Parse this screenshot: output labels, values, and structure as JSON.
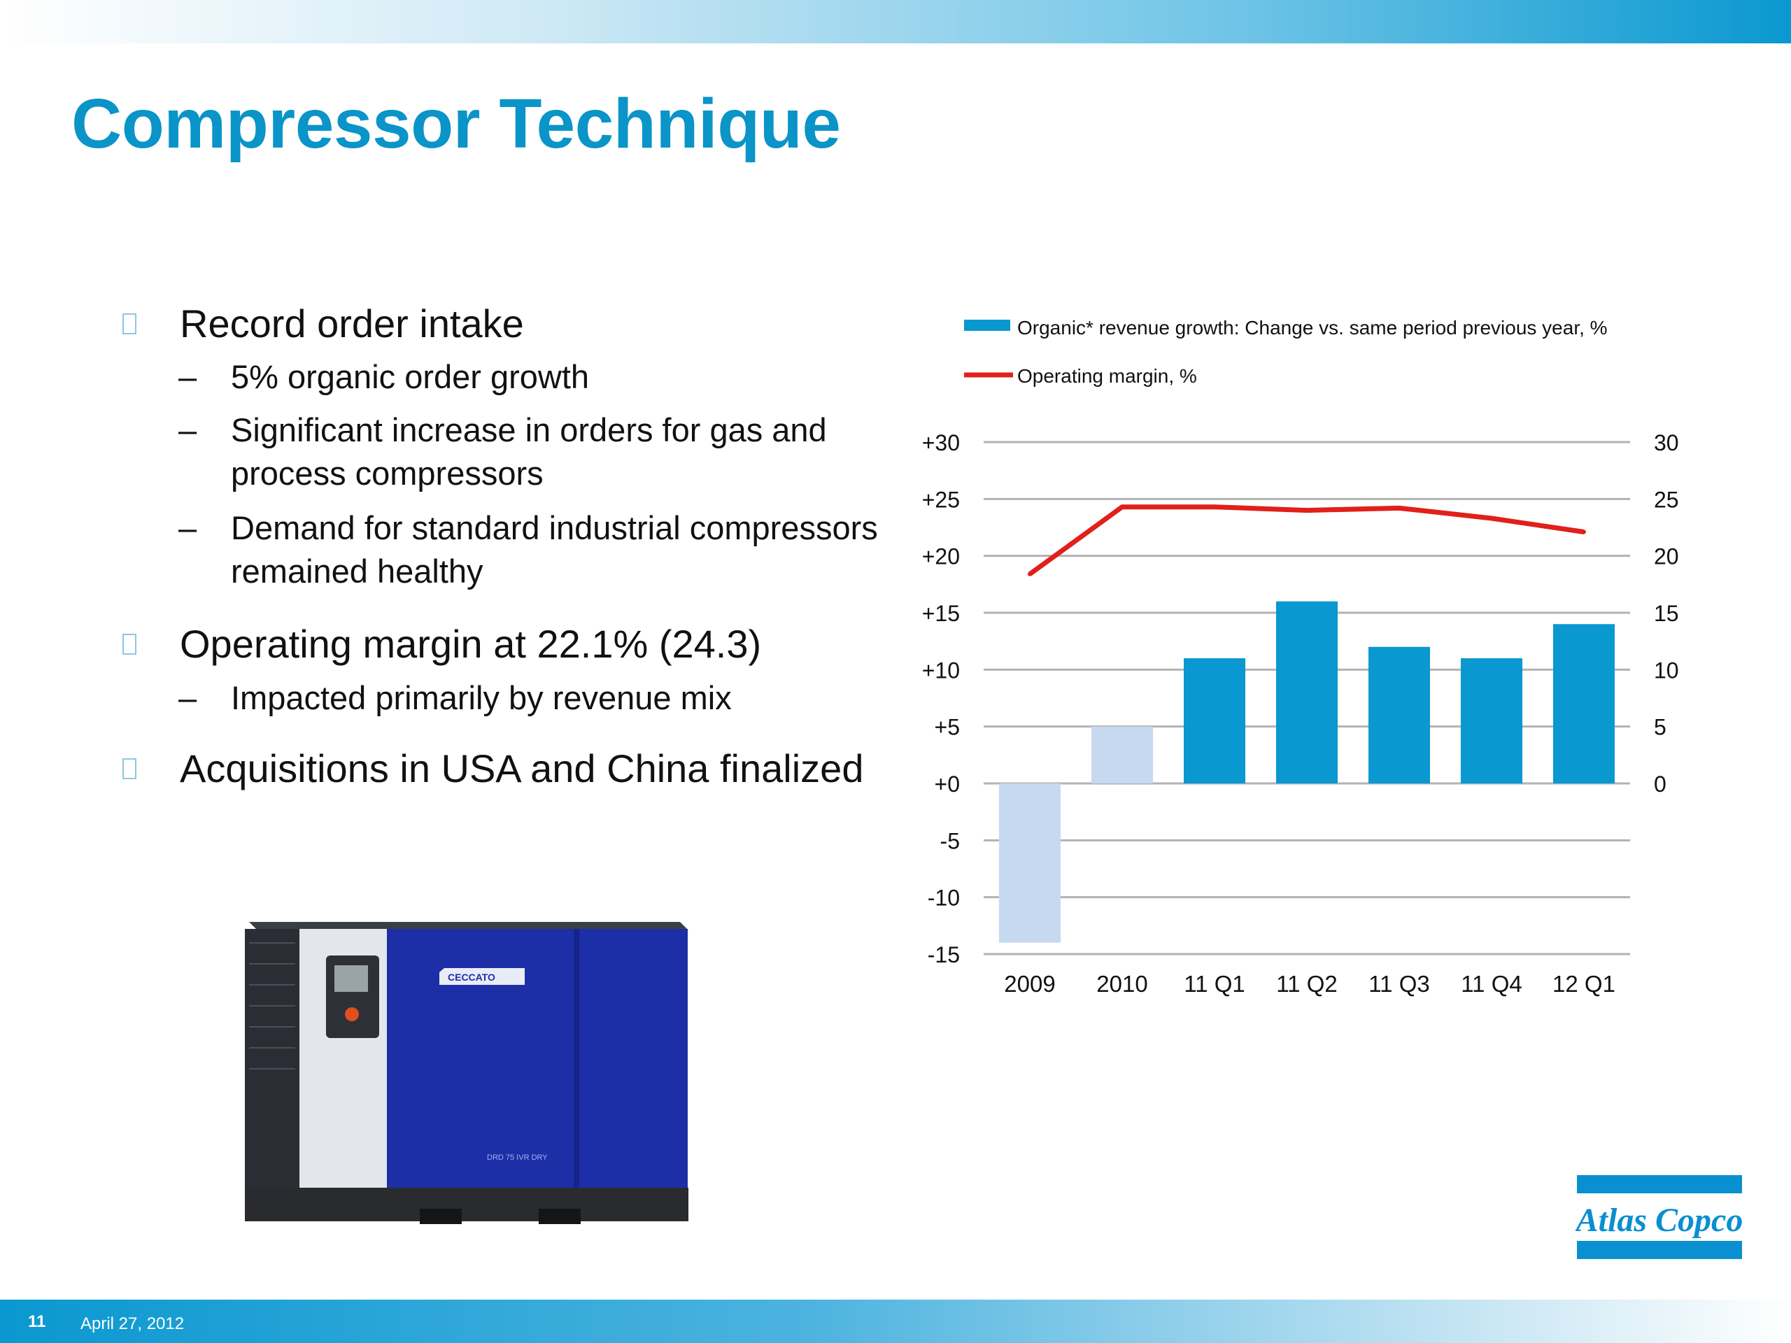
{
  "slide": {
    "title": "Compressor Technique",
    "page_number": "11",
    "date": "April 27, 2012"
  },
  "bullets": [
    {
      "text": "Record order intake",
      "subs": [
        "5% organic order growth",
        "Significant increase in orders for gas and process compressors",
        "Demand for standard industrial compressors remained healthy"
      ]
    },
    {
      "text": "Operating margin at 22.1% (24.3)",
      "subs": [
        "Impacted primarily by revenue mix"
      ]
    },
    {
      "text": "Acquisitions in USA and China finalized",
      "subs": []
    }
  ],
  "sub_dash": "–",
  "chart_data": {
    "type": "bar",
    "categories": [
      "2009",
      "2010",
      "11 Q1",
      "11 Q2",
      "11 Q3",
      "11 Q4",
      "12 Q1"
    ],
    "series": [
      {
        "name": "Organic* revenue growth: Change vs. same period previous year, %",
        "type": "bar",
        "axis": "left",
        "values": [
          -14,
          5,
          11,
          16,
          12,
          11,
          14
        ],
        "colors": [
          "#c6d9f0",
          "#c6d9f0",
          "#0a98d0",
          "#0a98d0",
          "#0a98d0",
          "#0a98d0",
          "#0a98d0"
        ]
      },
      {
        "name": "Operating margin, %",
        "type": "line",
        "axis": "right",
        "values": [
          18.4,
          24.3,
          24.3,
          24.0,
          24.2,
          23.3,
          22.1
        ],
        "color": "#e0201b"
      }
    ],
    "ylim_left": [
      -15,
      30
    ],
    "ylim_right": [
      0,
      30
    ],
    "left_ticks": [
      "-15",
      "-10",
      "-5",
      "+0",
      "+5",
      "+10",
      "+15",
      "+20",
      "+25",
      "+30"
    ],
    "right_ticks": [
      "0",
      "5",
      "10",
      "15",
      "20",
      "25",
      "30"
    ],
    "grid": true,
    "legend_position": "top"
  },
  "compressor": {
    "brand_label": "CECCATO",
    "model_label": "DRD 75 IVR DRY"
  },
  "logo": {
    "text": "Atlas Copco",
    "color": "#0a8fd0"
  }
}
